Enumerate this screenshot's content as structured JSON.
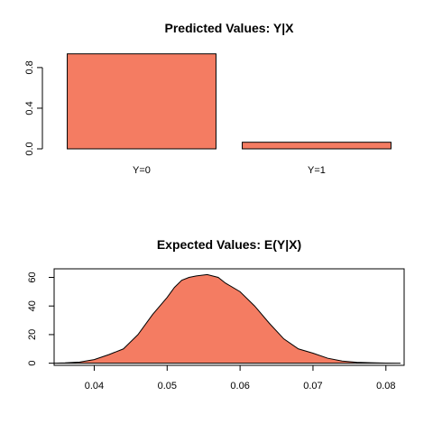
{
  "chart_data": [
    {
      "type": "bar",
      "title": "Predicted Values: Y|X",
      "categories": [
        "Y=0",
        "Y=1"
      ],
      "values": [
        0.935,
        0.065
      ],
      "ylim": [
        0,
        0.95
      ],
      "yticks": [
        0.0,
        0.4,
        0.8
      ],
      "ytick_labels": [
        "0.0",
        "0.4",
        "0.8"
      ],
      "bar_color": "#f47c62",
      "grid": false
    },
    {
      "type": "area",
      "title": "Expected Values: E(Y|X)",
      "x": [
        0.0345,
        0.036,
        0.038,
        0.04,
        0.042,
        0.044,
        0.046,
        0.048,
        0.05,
        0.051,
        0.052,
        0.053,
        0.054,
        0.0555,
        0.057,
        0.058,
        0.06,
        0.062,
        0.064,
        0.066,
        0.068,
        0.07,
        0.072,
        0.074,
        0.076,
        0.078,
        0.08,
        0.082
      ],
      "y": [
        0,
        0.2,
        0.8,
        2.5,
        6,
        10,
        20,
        34,
        46,
        53,
        58,
        60,
        61,
        62,
        60,
        56,
        50,
        40,
        28,
        17,
        10,
        7,
        3.5,
        1.5,
        0.6,
        0.3,
        0.1,
        0
      ],
      "xlim": [
        0.0345,
        0.0825
      ],
      "ylim": [
        -1.5,
        66
      ],
      "xticks": [
        0.04,
        0.05,
        0.06,
        0.07,
        0.08
      ],
      "xtick_labels": [
        "0.04",
        "0.05",
        "0.06",
        "0.07",
        "0.08"
      ],
      "yticks": [
        0,
        20,
        40,
        60
      ],
      "ytick_labels": [
        "0",
        "20",
        "40",
        "60"
      ],
      "fill_color": "#f47c62",
      "grid": false
    }
  ]
}
